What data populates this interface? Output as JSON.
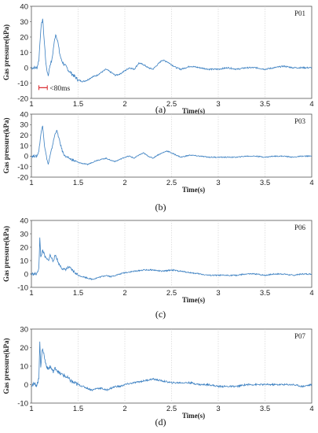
{
  "chart_data": [
    {
      "type": "line",
      "panel": "P01",
      "caption": "(a)",
      "xlabel": "Time(s)",
      "ylabel": "Gas pressure(kPa)",
      "xlim": [
        1,
        4
      ],
      "ylim": [
        -20,
        40
      ],
      "xticks": [
        "1",
        "1.5",
        "2",
        "2.5",
        "3",
        "3.5",
        "4"
      ],
      "yticks": [
        "40",
        "30",
        "20",
        "10",
        "0",
        "-10",
        "-20"
      ],
      "grid": "vertical",
      "annotation": "<80ms",
      "x": [
        1.0,
        1.06,
        1.08,
        1.1,
        1.12,
        1.14,
        1.16,
        1.18,
        1.2,
        1.22,
        1.24,
        1.26,
        1.28,
        1.3,
        1.32,
        1.35,
        1.38,
        1.4,
        1.45,
        1.5,
        1.55,
        1.6,
        1.65,
        1.7,
        1.75,
        1.8,
        1.85,
        1.9,
        1.95,
        2.0,
        2.05,
        2.1,
        2.15,
        2.2,
        2.25,
        2.3,
        2.35,
        2.4,
        2.45,
        2.5,
        2.55,
        2.6,
        2.65,
        2.7,
        2.8,
        2.9,
        3.0,
        3.1,
        3.2,
        3.3,
        3.4,
        3.5,
        3.6,
        3.7,
        3.8,
        3.9,
        4.0
      ],
      "y": [
        0,
        0,
        5,
        25,
        32,
        15,
        0,
        -5,
        2,
        5,
        15,
        22,
        18,
        10,
        5,
        2,
        0,
        -2,
        -5,
        -8,
        -9,
        -8,
        -6,
        -5,
        -3,
        -1,
        -3,
        -5,
        -4,
        -2,
        0,
        -1,
        3,
        2,
        0,
        -1,
        2,
        5,
        4,
        2,
        0,
        -1,
        0,
        1,
        0,
        -1,
        -1,
        0,
        -1,
        0,
        0,
        -1,
        0,
        1,
        0,
        0,
        0
      ]
    },
    {
      "type": "line",
      "panel": "P03",
      "caption": "(b)",
      "xlabel": "Time(s)",
      "ylabel": "Gas pressure(kPa)",
      "xlim": [
        1,
        4
      ],
      "ylim": [
        -20,
        40
      ],
      "xticks": [
        "1",
        "1.5",
        "2",
        "2.5",
        "3",
        "3.5",
        "4"
      ],
      "yticks": [
        "40",
        "30",
        "20",
        "10",
        "0",
        "-10",
        "-20"
      ],
      "grid": "vertical",
      "x": [
        1.0,
        1.06,
        1.08,
        1.1,
        1.12,
        1.14,
        1.16,
        1.18,
        1.2,
        1.22,
        1.25,
        1.27,
        1.3,
        1.33,
        1.36,
        1.4,
        1.45,
        1.5,
        1.55,
        1.6,
        1.65,
        1.7,
        1.75,
        1.8,
        1.85,
        1.9,
        1.95,
        2.0,
        2.05,
        2.1,
        2.15,
        2.2,
        2.25,
        2.3,
        2.35,
        2.4,
        2.45,
        2.5,
        2.55,
        2.6,
        2.65,
        2.7,
        2.8,
        2.9,
        3.0,
        3.1,
        3.2,
        3.3,
        3.4,
        3.5,
        3.6,
        3.7,
        3.8,
        3.9,
        4.0
      ],
      "y": [
        0,
        0,
        5,
        20,
        30,
        10,
        0,
        -8,
        0,
        8,
        20,
        25,
        15,
        5,
        0,
        -2,
        -4,
        -6,
        -7,
        -8,
        -6,
        -4,
        -3,
        -2,
        -4,
        -5,
        -3,
        -1,
        0,
        -2,
        1,
        3,
        0,
        -2,
        1,
        3,
        5,
        3,
        1,
        -1,
        0,
        1,
        0,
        -1,
        -1,
        -1,
        -1,
        0,
        0,
        -1,
        0,
        0,
        -1,
        0,
        0
      ]
    },
    {
      "type": "line",
      "panel": "P06",
      "caption": "(c)",
      "xlabel": "Time(s)",
      "ylabel": "Gas pressure(kPa)",
      "xlim": [
        1,
        4
      ],
      "ylim": [
        -10,
        40
      ],
      "xticks": [
        "1",
        "1.5",
        "2",
        "2.5",
        "3",
        "3.5",
        "4"
      ],
      "yticks": [
        "40",
        "30",
        "20",
        "10",
        "0",
        "-10"
      ],
      "grid": "vertical",
      "x": [
        1.0,
        1.06,
        1.08,
        1.09,
        1.1,
        1.12,
        1.15,
        1.18,
        1.2,
        1.23,
        1.26,
        1.29,
        1.32,
        1.35,
        1.4,
        1.45,
        1.5,
        1.55,
        1.6,
        1.65,
        1.7,
        1.75,
        1.8,
        1.85,
        1.9,
        1.95,
        2.0,
        2.1,
        2.2,
        2.3,
        2.4,
        2.5,
        2.6,
        2.7,
        2.8,
        2.9,
        3.0,
        3.1,
        3.2,
        3.3,
        3.4,
        3.5,
        3.6,
        3.7,
        3.8,
        3.9,
        4.0
      ],
      "y": [
        0,
        0,
        5,
        27,
        12,
        18,
        12,
        10,
        14,
        10,
        14,
        8,
        5,
        3,
        5,
        2,
        -1,
        -2,
        -3,
        -4,
        -3,
        -2,
        -1,
        -2,
        -1,
        0,
        1,
        2,
        3,
        3,
        2,
        3,
        2,
        1,
        0,
        -1,
        -1,
        -1,
        -1,
        0,
        0,
        -1,
        0,
        0,
        -1,
        0,
        0
      ]
    },
    {
      "type": "line",
      "panel": "P07",
      "caption": "(d)",
      "xlabel": "Time(s)",
      "ylabel": "Gas pressure(kPa)",
      "xlim": [
        1,
        4
      ],
      "ylim": [
        -10,
        30
      ],
      "xticks": [
        "1",
        "1.5",
        "2",
        "2.5",
        "3",
        "3.5",
        "4"
      ],
      "yticks": [
        "30",
        "20",
        "10",
        "0",
        "-10"
      ],
      "grid": "vertical",
      "x": [
        1.0,
        1.06,
        1.08,
        1.09,
        1.1,
        1.12,
        1.15,
        1.18,
        1.2,
        1.23,
        1.26,
        1.3,
        1.35,
        1.4,
        1.45,
        1.5,
        1.55,
        1.6,
        1.65,
        1.7,
        1.75,
        1.8,
        1.85,
        1.9,
        1.95,
        2.0,
        2.1,
        2.2,
        2.3,
        2.4,
        2.5,
        2.6,
        2.7,
        2.8,
        2.9,
        3.0,
        3.1,
        3.2,
        3.3,
        3.4,
        3.5,
        3.6,
        3.7,
        3.8,
        3.9,
        4.0
      ],
      "y": [
        0,
        0,
        3,
        24,
        10,
        20,
        12,
        8,
        10,
        7,
        9,
        6,
        5,
        3,
        1,
        0,
        -1,
        -2,
        -3,
        -2,
        -2,
        -3,
        -2,
        -1,
        -1,
        0,
        1,
        2,
        3,
        2,
        1,
        1,
        1,
        0,
        0,
        -1,
        -1,
        -1,
        0,
        0,
        0,
        0,
        0,
        0,
        -1,
        0
      ]
    }
  ],
  "colors": {
    "series": "#3a7fc1",
    "grid": "#cfcfcf",
    "axis": "#555555",
    "annotation": "#d9262b"
  }
}
